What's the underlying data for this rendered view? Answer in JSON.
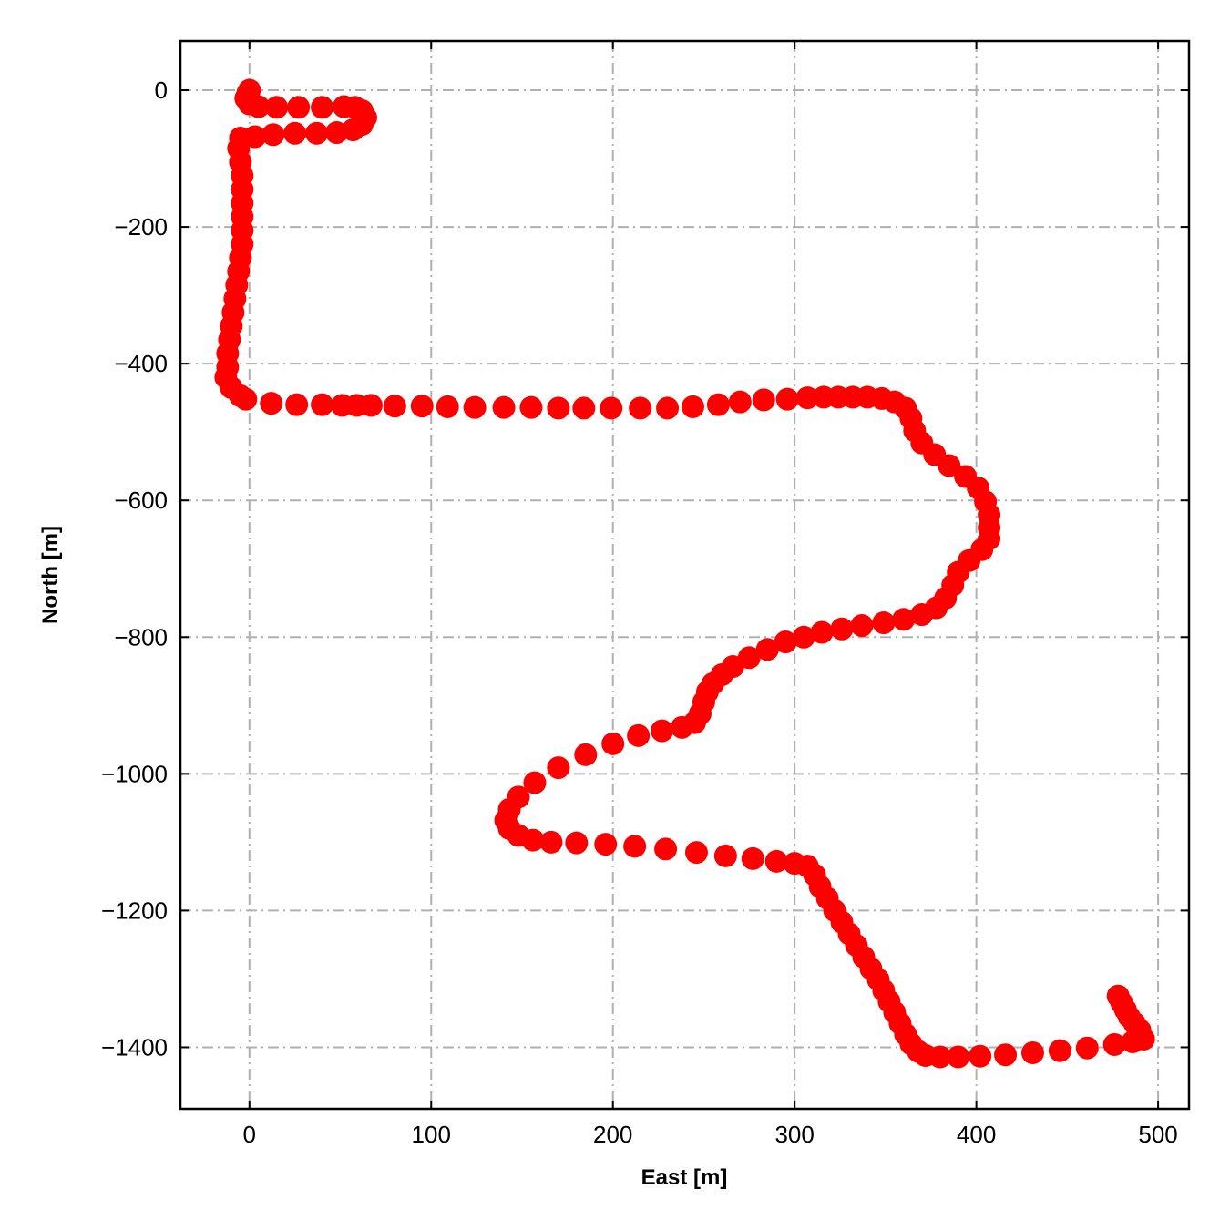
{
  "chart_data": {
    "type": "scatter",
    "title": "",
    "xlabel": "East [m]",
    "ylabel": "North [m]",
    "xlim": [
      -38,
      517
    ],
    "ylim": [
      -1490,
      72
    ],
    "xticks": [
      0,
      100,
      200,
      300,
      400,
      500
    ],
    "yticks": [
      0,
      -200,
      -400,
      -600,
      -800,
      -1000,
      -1200,
      -1400
    ],
    "xtick_labels": [
      "0",
      "100",
      "200",
      "300",
      "400",
      "500"
    ],
    "ytick_labels": [
      "0",
      "−200",
      "−400",
      "−600",
      "−800",
      "−1000",
      "−1200",
      "−1400"
    ],
    "grid": true,
    "marker_color": "#ff0000",
    "series": [
      {
        "points": [
          [
            0,
            0
          ],
          [
            -1,
            -5
          ],
          [
            -2,
            -12
          ],
          [
            0,
            -20
          ],
          [
            5,
            -24
          ],
          [
            15,
            -25
          ],
          [
            27,
            -25
          ],
          [
            40,
            -25
          ],
          [
            52,
            -24
          ],
          [
            58,
            -25
          ],
          [
            62,
            -30
          ],
          [
            64,
            -40
          ],
          [
            62,
            -50
          ],
          [
            57,
            -58
          ],
          [
            48,
            -62
          ],
          [
            37,
            -63
          ],
          [
            25,
            -63
          ],
          [
            13,
            -65
          ],
          [
            3,
            -68
          ],
          [
            -5,
            -70
          ],
          [
            -6,
            -85
          ],
          [
            -5,
            -105
          ],
          [
            -4,
            -125
          ],
          [
            -4,
            -145
          ],
          [
            -4,
            -165
          ],
          [
            -4,
            -185
          ],
          [
            -4,
            -205
          ],
          [
            -4,
            -225
          ],
          [
            -5,
            -245
          ],
          [
            -6,
            -265
          ],
          [
            -7,
            -285
          ],
          [
            -8,
            -305
          ],
          [
            -9,
            -325
          ],
          [
            -10,
            -345
          ],
          [
            -11,
            -365
          ],
          [
            -12,
            -385
          ],
          [
            -12,
            -405
          ],
          [
            -13,
            -420
          ],
          [
            -10,
            -435
          ],
          [
            -5,
            -447
          ],
          [
            -2,
            -452
          ],
          [
            12,
            -458
          ],
          [
            26,
            -460
          ],
          [
            40,
            -460
          ],
          [
            51,
            -461
          ],
          [
            59,
            -461
          ],
          [
            67,
            -461
          ],
          [
            80,
            -462
          ],
          [
            95,
            -462
          ],
          [
            109,
            -463
          ],
          [
            124,
            -464
          ],
          [
            140,
            -464
          ],
          [
            155,
            -464
          ],
          [
            170,
            -465
          ],
          [
            184,
            -465
          ],
          [
            199,
            -465
          ],
          [
            215,
            -465
          ],
          [
            230,
            -465
          ],
          [
            244,
            -463
          ],
          [
            258,
            -460
          ],
          [
            270,
            -456
          ],
          [
            283,
            -453
          ],
          [
            296,
            -452
          ],
          [
            307,
            -450
          ],
          [
            316,
            -449
          ],
          [
            324,
            -449
          ],
          [
            332,
            -449
          ],
          [
            340,
            -449
          ],
          [
            348,
            -451
          ],
          [
            355,
            -456
          ],
          [
            361,
            -465
          ],
          [
            364,
            -480
          ],
          [
            366,
            -498
          ],
          [
            370,
            -516
          ],
          [
            377,
            -533
          ],
          [
            385,
            -549
          ],
          [
            394,
            -565
          ],
          [
            401,
            -582
          ],
          [
            405,
            -602
          ],
          [
            407,
            -621
          ],
          [
            407,
            -640
          ],
          [
            407,
            -656
          ],
          [
            403,
            -672
          ],
          [
            396,
            -688
          ],
          [
            390,
            -705
          ],
          [
            387,
            -724
          ],
          [
            383,
            -743
          ],
          [
            378,
            -757
          ],
          [
            370,
            -767
          ],
          [
            360,
            -774
          ],
          [
            349,
            -779
          ],
          [
            337,
            -783
          ],
          [
            326,
            -788
          ],
          [
            315,
            -793
          ],
          [
            305,
            -800
          ],
          [
            295,
            -807
          ],
          [
            285,
            -818
          ],
          [
            275,
            -830
          ],
          [
            266,
            -843
          ],
          [
            260,
            -855
          ],
          [
            255,
            -868
          ],
          [
            252,
            -880
          ],
          [
            250,
            -895
          ],
          [
            248,
            -912
          ],
          [
            245,
            -925
          ],
          [
            238,
            -932
          ],
          [
            227,
            -937
          ],
          [
            214,
            -944
          ],
          [
            200,
            -956
          ],
          [
            185,
            -972
          ],
          [
            170,
            -991
          ],
          [
            157,
            -1013
          ],
          [
            148,
            -1034
          ],
          [
            143,
            -1052
          ],
          [
            141,
            -1068
          ],
          [
            143,
            -1080
          ],
          [
            148,
            -1090
          ],
          [
            156,
            -1097
          ],
          [
            166,
            -1100
          ],
          [
            180,
            -1101
          ],
          [
            196,
            -1103
          ],
          [
            212,
            -1106
          ],
          [
            229,
            -1110
          ],
          [
            246,
            -1115
          ],
          [
            262,
            -1120
          ],
          [
            277,
            -1124
          ],
          [
            290,
            -1128
          ],
          [
            300,
            -1131
          ],
          [
            307,
            -1135
          ],
          [
            311,
            -1148
          ],
          [
            314,
            -1165
          ],
          [
            318,
            -1182
          ],
          [
            322,
            -1200
          ],
          [
            326,
            -1217
          ],
          [
            330,
            -1234
          ],
          [
            334,
            -1251
          ],
          [
            338,
            -1268
          ],
          [
            342,
            -1285
          ],
          [
            346,
            -1301
          ],
          [
            349,
            -1317
          ],
          [
            352,
            -1333
          ],
          [
            355,
            -1349
          ],
          [
            358,
            -1365
          ],
          [
            361,
            -1381
          ],
          [
            364,
            -1395
          ],
          [
            368,
            -1406
          ],
          [
            372,
            -1412
          ],
          [
            380,
            -1414
          ],
          [
            390,
            -1414
          ],
          [
            402,
            -1413
          ],
          [
            416,
            -1411
          ],
          [
            431,
            -1408
          ],
          [
            446,
            -1405
          ],
          [
            461,
            -1401
          ],
          [
            476,
            -1396
          ],
          [
            486,
            -1392
          ],
          [
            492,
            -1388
          ],
          [
            490,
            -1375
          ],
          [
            487,
            -1365
          ],
          [
            484,
            -1355
          ],
          [
            482,
            -1345
          ],
          [
            480,
            -1335
          ],
          [
            478,
            -1325
          ]
        ]
      }
    ]
  }
}
